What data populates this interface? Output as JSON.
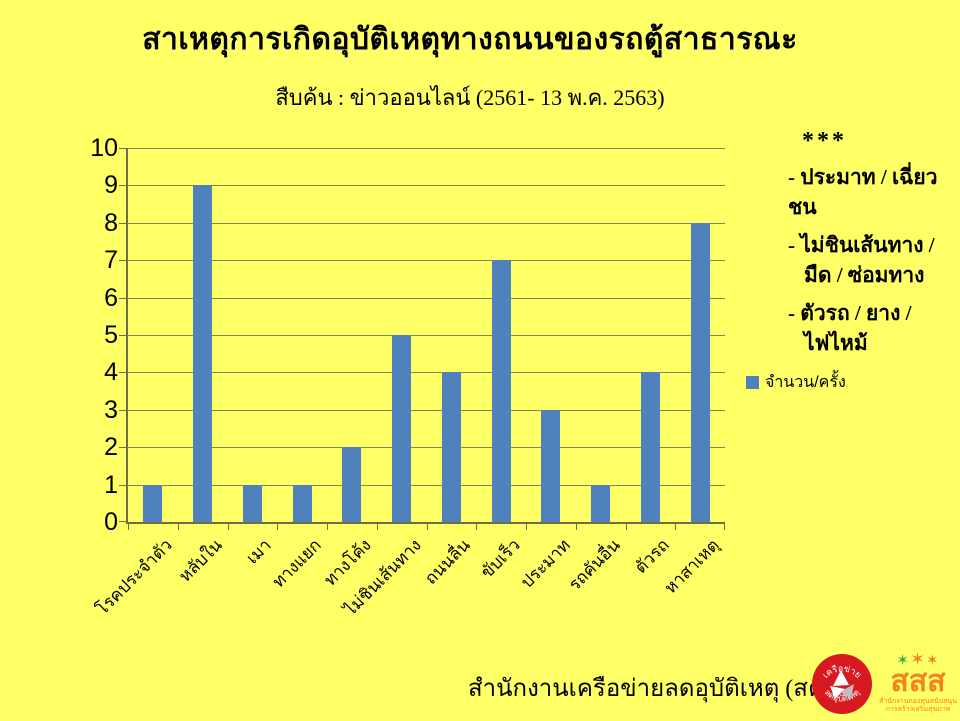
{
  "page": {
    "background": "#ffff66"
  },
  "chart_data": {
    "type": "bar",
    "title": "สาเหตุการเกิดอุบัติเหตุทางถนนของรถตู้สาธารณะ",
    "subtitle": "สืบค้น : ข่าวออนไลน์ (2561- 13 พ.ค. 2563)",
    "categories": [
      "โรคประจำตัว",
      "หลับใน",
      "เมา",
      "ทางแยก",
      "ทางโค้ง",
      "ไม่ชินเส้นทาง",
      "ถนนลื่น",
      "ขับเร็ว",
      "ประมาท",
      "รถคันอื่น",
      "ตัวรถ",
      "หาสาเหตุ"
    ],
    "values": [
      1,
      9,
      1,
      1,
      2,
      5,
      4,
      7,
      3,
      1,
      4,
      8
    ],
    "xlabel": "",
    "ylabel": "",
    "ylim": [
      0,
      10
    ],
    "ytick_step": 1,
    "yticks": [
      0,
      1,
      2,
      3,
      4,
      5,
      6,
      7,
      8,
      9,
      10
    ],
    "grid": true,
    "legend": [
      "จำนวน/ครั้ง"
    ],
    "legend_position": "right",
    "bar_color": "#4f81bd",
    "background_color": "#ffff66",
    "gridline_color": "#85855c"
  },
  "notes": {
    "header": "***",
    "items": [
      {
        "lines": [
          "- ประมาท / เฉี่ยวชน"
        ]
      },
      {
        "lines": [
          "- ไม่ชินเส้นทาง /",
          "มืด / ซ่อมทาง"
        ]
      },
      {
        "lines": [
          "- ตัวรถ / ยาง /",
          "ไฟไหม้"
        ]
      }
    ]
  },
  "footer": {
    "org": "สำนักงานเครือข่ายลดอุบัติเหตุ (สคอ.)"
  },
  "logos": {
    "network": {
      "top_text": "เครือข่าย",
      "bottom_text": "ลดอุบัติเหตุ",
      "color": "#d71a21"
    },
    "thaihealth": {
      "acronym": "สสส",
      "line1": "สำนักงานกองทุนสนับสนุน",
      "line2": "การสร้างเสริมสุขภาพ",
      "color": "#f58220",
      "stars": "✶✶✶"
    }
  }
}
